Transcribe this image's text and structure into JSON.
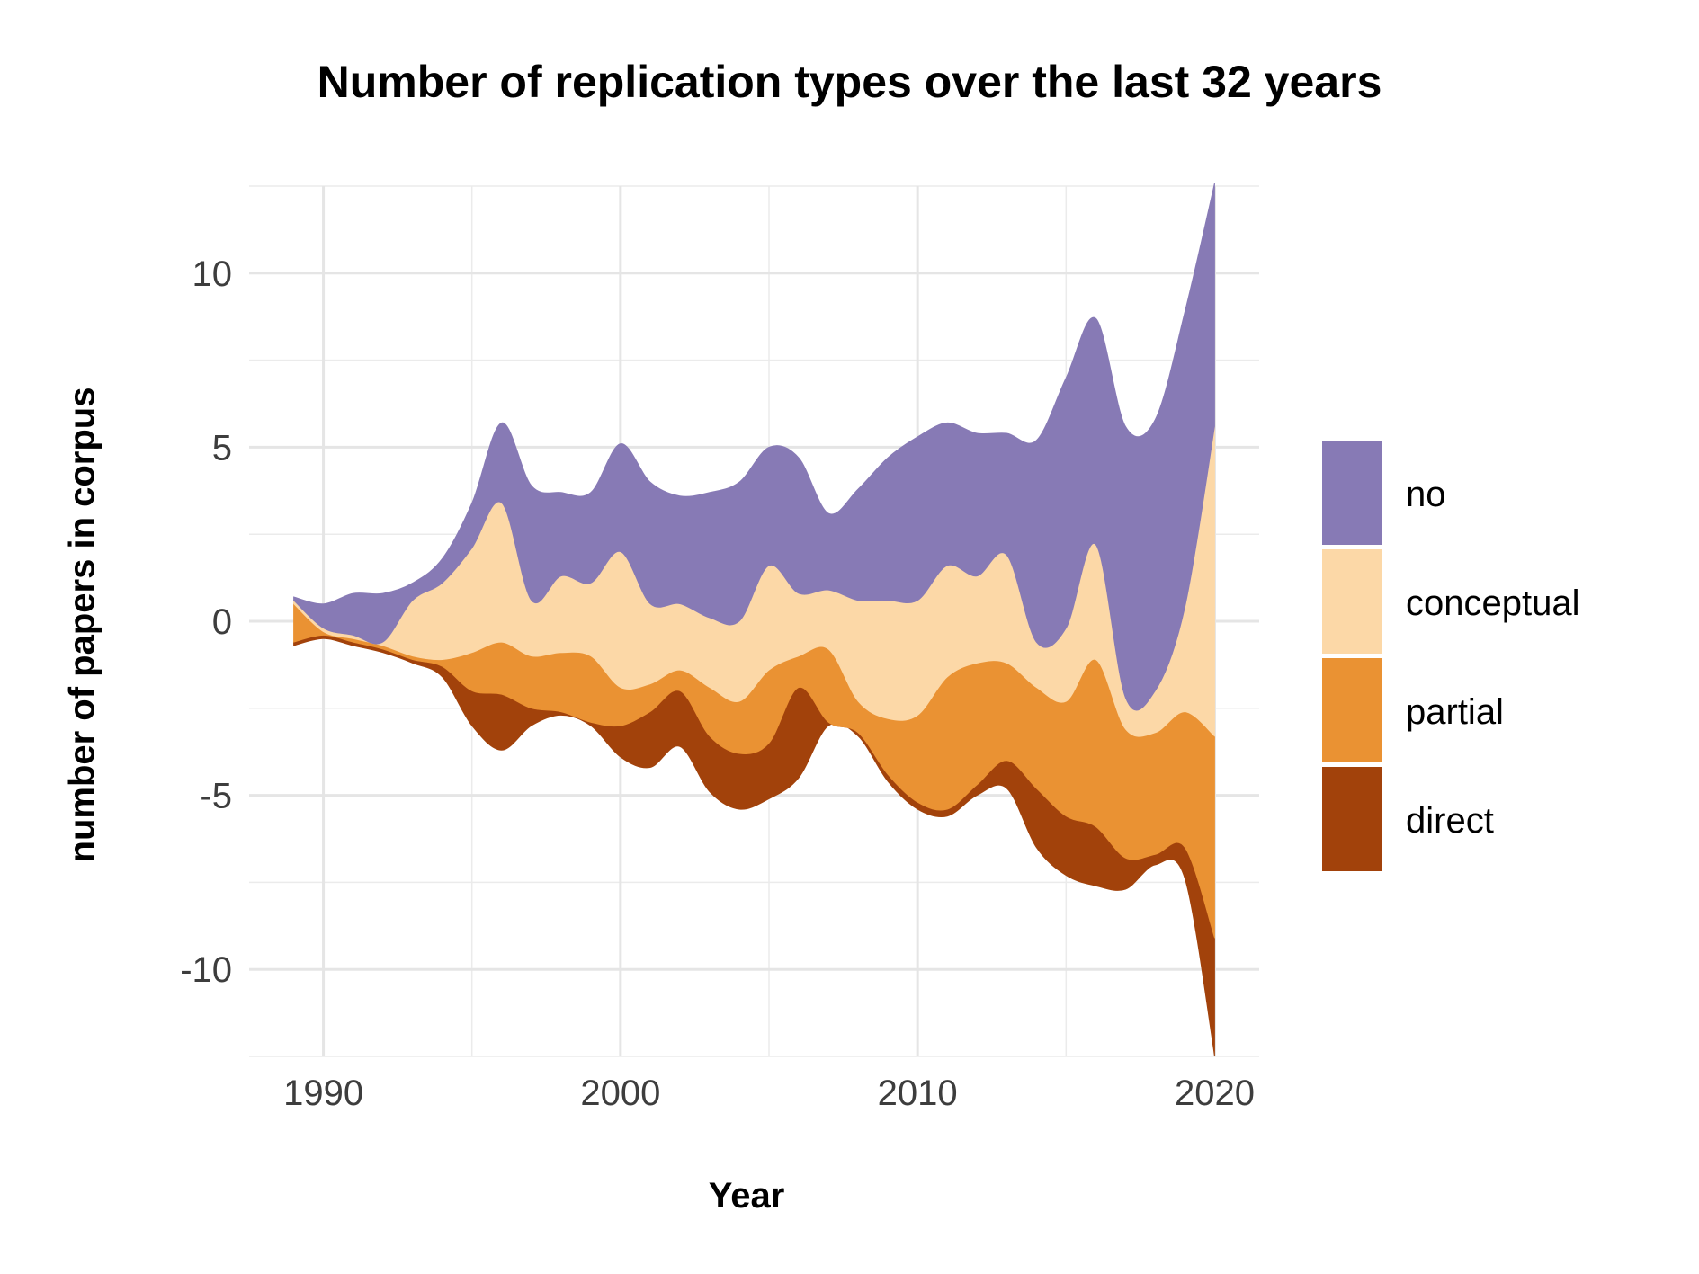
{
  "chart_data": {
    "type": "area",
    "subtype": "streamgraph",
    "title": "Number of replication types over the last 32 years",
    "xlabel": "Year",
    "ylabel": "number of papers in corpus",
    "xlim": [
      1987.5,
      2021.5
    ],
    "ylim": [
      -12.5,
      12.5
    ],
    "x_ticks": [
      1990,
      2000,
      2010,
      2020
    ],
    "y_ticks": [
      -10,
      -5,
      0,
      5,
      10
    ],
    "y_tick_labels": [
      "-10",
      "-5",
      "0",
      "5",
      "10"
    ],
    "grid": true,
    "legend_position": "right",
    "stack_order_top_to_bottom": [
      "no",
      "conceptual",
      "partial",
      "direct"
    ],
    "x": [
      1989,
      1990,
      1991,
      1992,
      1993,
      1994,
      1995,
      1996,
      1997,
      1998,
      1999,
      2000,
      2001,
      2002,
      2003,
      2004,
      2005,
      2006,
      2007,
      2008,
      2009,
      2010,
      2011,
      2012,
      2013,
      2014,
      2015,
      2016,
      2017,
      2018,
      2019,
      2020
    ],
    "baseline": [
      -0.7,
      -0.5,
      -0.7,
      -0.9,
      -1.2,
      -1.6,
      -3.0,
      -3.7,
      -3.0,
      -2.7,
      -3.0,
      -3.9,
      -4.2,
      -3.6,
      -4.9,
      -5.4,
      -5.1,
      -4.5,
      -3.0,
      -3.3,
      -4.6,
      -5.4,
      -5.6,
      -5.0,
      -4.8,
      -6.5,
      -7.3,
      -7.6,
      -7.7,
      -7.0,
      -7.4,
      -12.5
    ],
    "series": [
      {
        "name": "direct",
        "color": "#A2420B",
        "values": [
          0.1,
          0.1,
          0.1,
          0.1,
          0.1,
          0.3,
          1.0,
          1.6,
          0.5,
          0.1,
          0.1,
          0.9,
          1.6,
          1.6,
          1.6,
          1.6,
          1.6,
          2.6,
          0.1,
          0.1,
          0.2,
          0.2,
          0.2,
          0.3,
          0.8,
          1.7,
          1.7,
          1.7,
          0.9,
          0.3,
          0.9,
          3.4
        ]
      },
      {
        "name": "partial",
        "color": "#EA9233",
        "values": [
          1.1,
          0.1,
          0.1,
          0.1,
          0.1,
          0.2,
          1.1,
          1.5,
          1.5,
          1.7,
          1.9,
          1.1,
          0.8,
          0.6,
          1.4,
          1.5,
          2.1,
          0.9,
          2.1,
          0.9,
          1.6,
          2.5,
          3.8,
          3.5,
          2.8,
          2.9,
          3.3,
          4.8,
          3.7,
          3.5,
          3.9,
          5.8
        ]
      },
      {
        "name": "conceptual",
        "color": "#FCD8A7",
        "values": [
          0.1,
          0.1,
          0.1,
          0.1,
          1.6,
          2.2,
          3.0,
          4.0,
          1.6,
          2.2,
          2.1,
          3.9,
          2.3,
          1.9,
          2.0,
          2.3,
          3.0,
          1.8,
          1.7,
          2.9,
          3.4,
          3.3,
          3.2,
          2.5,
          3.1,
          1.3,
          2.1,
          3.3,
          0.9,
          1.2,
          3.0,
          8.9
        ]
      },
      {
        "name": "no",
        "color": "#877AB5",
        "values": [
          0.1,
          0.7,
          1.2,
          1.4,
          0.5,
          0.7,
          1.3,
          2.3,
          3.3,
          2.4,
          2.6,
          3.1,
          3.5,
          3.1,
          3.6,
          4.0,
          3.4,
          3.9,
          2.2,
          3.2,
          4.1,
          4.7,
          4.1,
          4.1,
          3.5,
          5.8,
          7.2,
          6.5,
          7.8,
          7.8,
          8.5,
          7.0
        ]
      }
    ]
  }
}
